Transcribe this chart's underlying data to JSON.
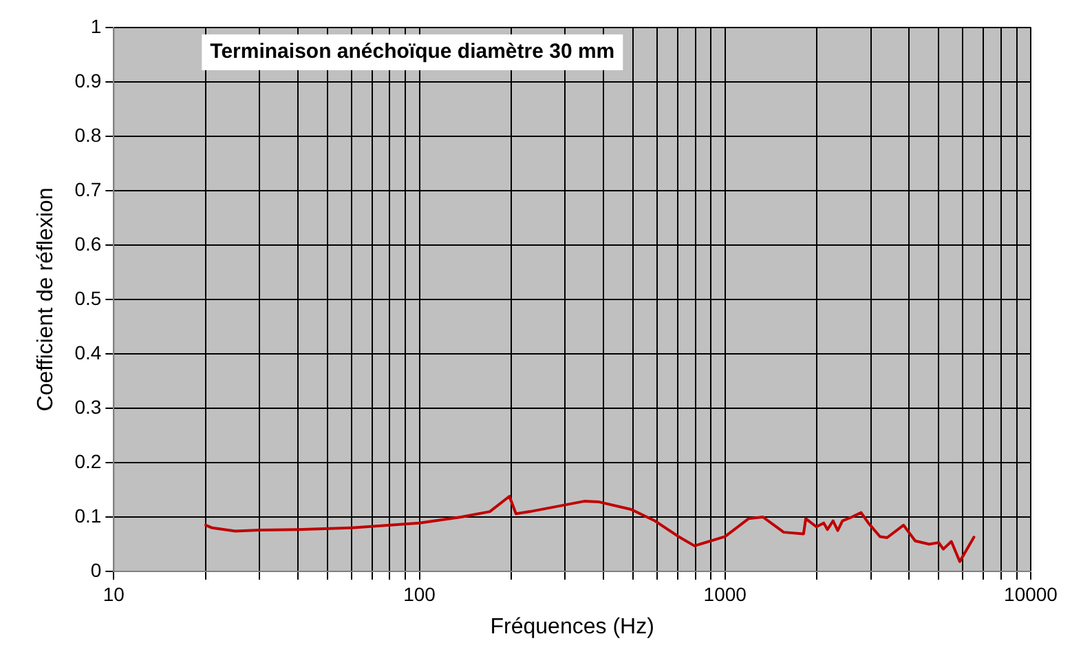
{
  "chart_data": {
    "type": "line",
    "title": "Terminaison anéchoïque diamètre 30 mm",
    "xlabel": "Fréquences (Hz)",
    "ylabel": "Coefficient de réflexion",
    "log": "x",
    "grid": true,
    "legend": false,
    "marker": "none",
    "line_style": "solid",
    "xlim": [
      10,
      10000
    ],
    "xticks": [
      10,
      {
        "value": 20,
        "label": null
      },
      {
        "value": 30,
        "label": null
      },
      {
        "value": 40,
        "label": null
      },
      {
        "value": 50,
        "label": null
      },
      {
        "value": 60,
        "label": null
      },
      {
        "value": 70,
        "label": null
      },
      {
        "value": 80,
        "label": null
      },
      {
        "value": 90,
        "label": null
      },
      100,
      {
        "value": 200,
        "label": null
      },
      {
        "value": 300,
        "label": null
      },
      {
        "value": 400,
        "label": null
      },
      {
        "value": 500,
        "label": null
      },
      {
        "value": 600,
        "label": null
      },
      {
        "value": 700,
        "label": null
      },
      {
        "value": 800,
        "label": null
      },
      {
        "value": 900,
        "label": null
      },
      1000,
      {
        "value": 2000,
        "label": null
      },
      {
        "value": 3000,
        "label": null
      },
      {
        "value": 4000,
        "label": null
      },
      {
        "value": 5000,
        "label": null
      },
      {
        "value": 6000,
        "label": null
      },
      {
        "value": 7000,
        "label": null
      },
      {
        "value": 8000,
        "label": null
      },
      {
        "value": 9000,
        "label": null
      },
      10000
    ],
    "ylim": [
      0,
      1
    ],
    "yticks": [
      0,
      0.1,
      0.2,
      0.3,
      0.4,
      0.5,
      0.6,
      0.7,
      0.8,
      0.9,
      1
    ],
    "x": [
      20,
      21,
      25,
      30,
      40,
      60,
      100,
      137,
      170,
      197,
      207,
      230,
      346,
      385,
      493,
      589,
      700,
      794,
      1000,
      1194,
      1330,
      1556,
      1806,
      1837,
      1990,
      2103,
      2163,
      2256,
      2337,
      2421,
      2600,
      2787,
      2943,
      3213,
      3389,
      3836,
      4190,
      4656,
      5000,
      5176,
      5500,
      5860,
      6520
    ],
    "series": [
      {
        "color": "#c00000",
        "values": [
          0.085,
          0.08,
          0.074,
          0.076,
          0.077,
          0.08,
          0.089,
          0.1,
          0.11,
          0.138,
          0.106,
          0.11,
          0.129,
          0.128,
          0.114,
          0.093,
          0.065,
          0.047,
          0.064,
          0.097,
          0.1,
          0.072,
          0.069,
          0.097,
          0.082,
          0.089,
          0.077,
          0.093,
          0.075,
          0.093,
          0.1,
          0.108,
          0.089,
          0.064,
          0.062,
          0.085,
          0.056,
          0.05,
          0.053,
          0.041,
          0.055,
          0.018,
          0.063
        ]
      }
    ]
  }
}
